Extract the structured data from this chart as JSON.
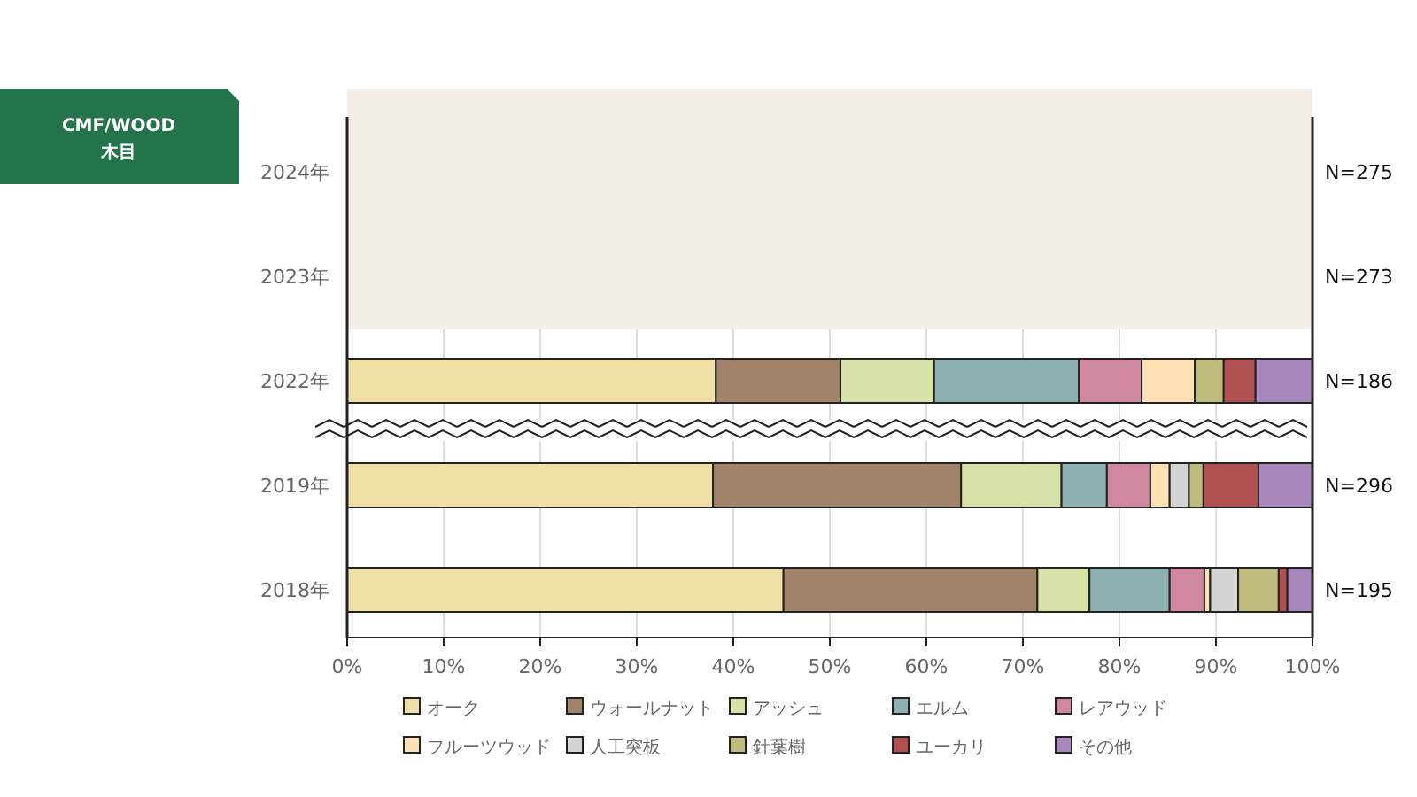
{
  "chart_data": {
    "type": "bar",
    "orientation": "horizontal",
    "stacked": true,
    "title": "CMF/WOOD",
    "subtitle": "木目",
    "categories": [
      "2024年",
      "2023年",
      "2022年",
      "2019年",
      "2018年"
    ],
    "series": [
      {
        "name": "オーク",
        "color": "#f0e0a8",
        "values": [
          null,
          null,
          38.2,
          37.9,
          45.2
        ]
      },
      {
        "name": "ウォールナット",
        "color": "#a0836a",
        "values": [
          null,
          null,
          12.9,
          25.7,
          26.3
        ]
      },
      {
        "name": "アッシュ",
        "color": "#d6e2a8",
        "values": [
          null,
          null,
          9.7,
          10.4,
          5.4
        ]
      },
      {
        "name": "エルム",
        "color": "#8eb0b2",
        "values": [
          null,
          null,
          15.0,
          4.7,
          8.3
        ]
      },
      {
        "name": "レアウッド",
        "color": "#d088a0",
        "values": [
          null,
          null,
          6.5,
          4.5,
          3.6
        ]
      },
      {
        "name": "フルーツウッド",
        "color": "#fde0b4",
        "values": [
          null,
          null,
          5.5,
          2.0,
          0.6
        ]
      },
      {
        "name": "人工突板",
        "color": "#d4d4d4",
        "values": [
          null,
          null,
          0,
          2.0,
          2.9
        ]
      },
      {
        "name": "針葉樹",
        "color": "#c0bc80",
        "values": [
          null,
          null,
          3.0,
          1.5,
          4.2
        ]
      },
      {
        "name": "ユーカリ",
        "color": "#b05050",
        "values": [
          null,
          null,
          3.3,
          5.7,
          0.9
        ]
      },
      {
        "name": "その他",
        "color": "#a888bc",
        "values": [
          null,
          null,
          5.9,
          5.6,
          2.6
        ]
      }
    ],
    "xlim": [
      0,
      100
    ],
    "xticks": [
      {
        "value": 0,
        "label": "0%"
      },
      {
        "value": 10,
        "label": "10%"
      },
      {
        "value": 20,
        "label": "20%"
      },
      {
        "value": 30,
        "label": "30%"
      },
      {
        "value": 40,
        "label": "40%"
      },
      {
        "value": 50,
        "label": "50%"
      },
      {
        "value": 60,
        "label": "60%"
      },
      {
        "value": 70,
        "label": "70%"
      },
      {
        "value": 80,
        "label": "80%"
      },
      {
        "value": 90,
        "label": "90%"
      },
      {
        "value": 100,
        "label": "100%"
      }
    ],
    "grid": "x",
    "legend": "bottom",
    "annotations": [
      "N=275",
      "N=273",
      "N=186",
      "N=296",
      "N=195"
    ]
  }
}
